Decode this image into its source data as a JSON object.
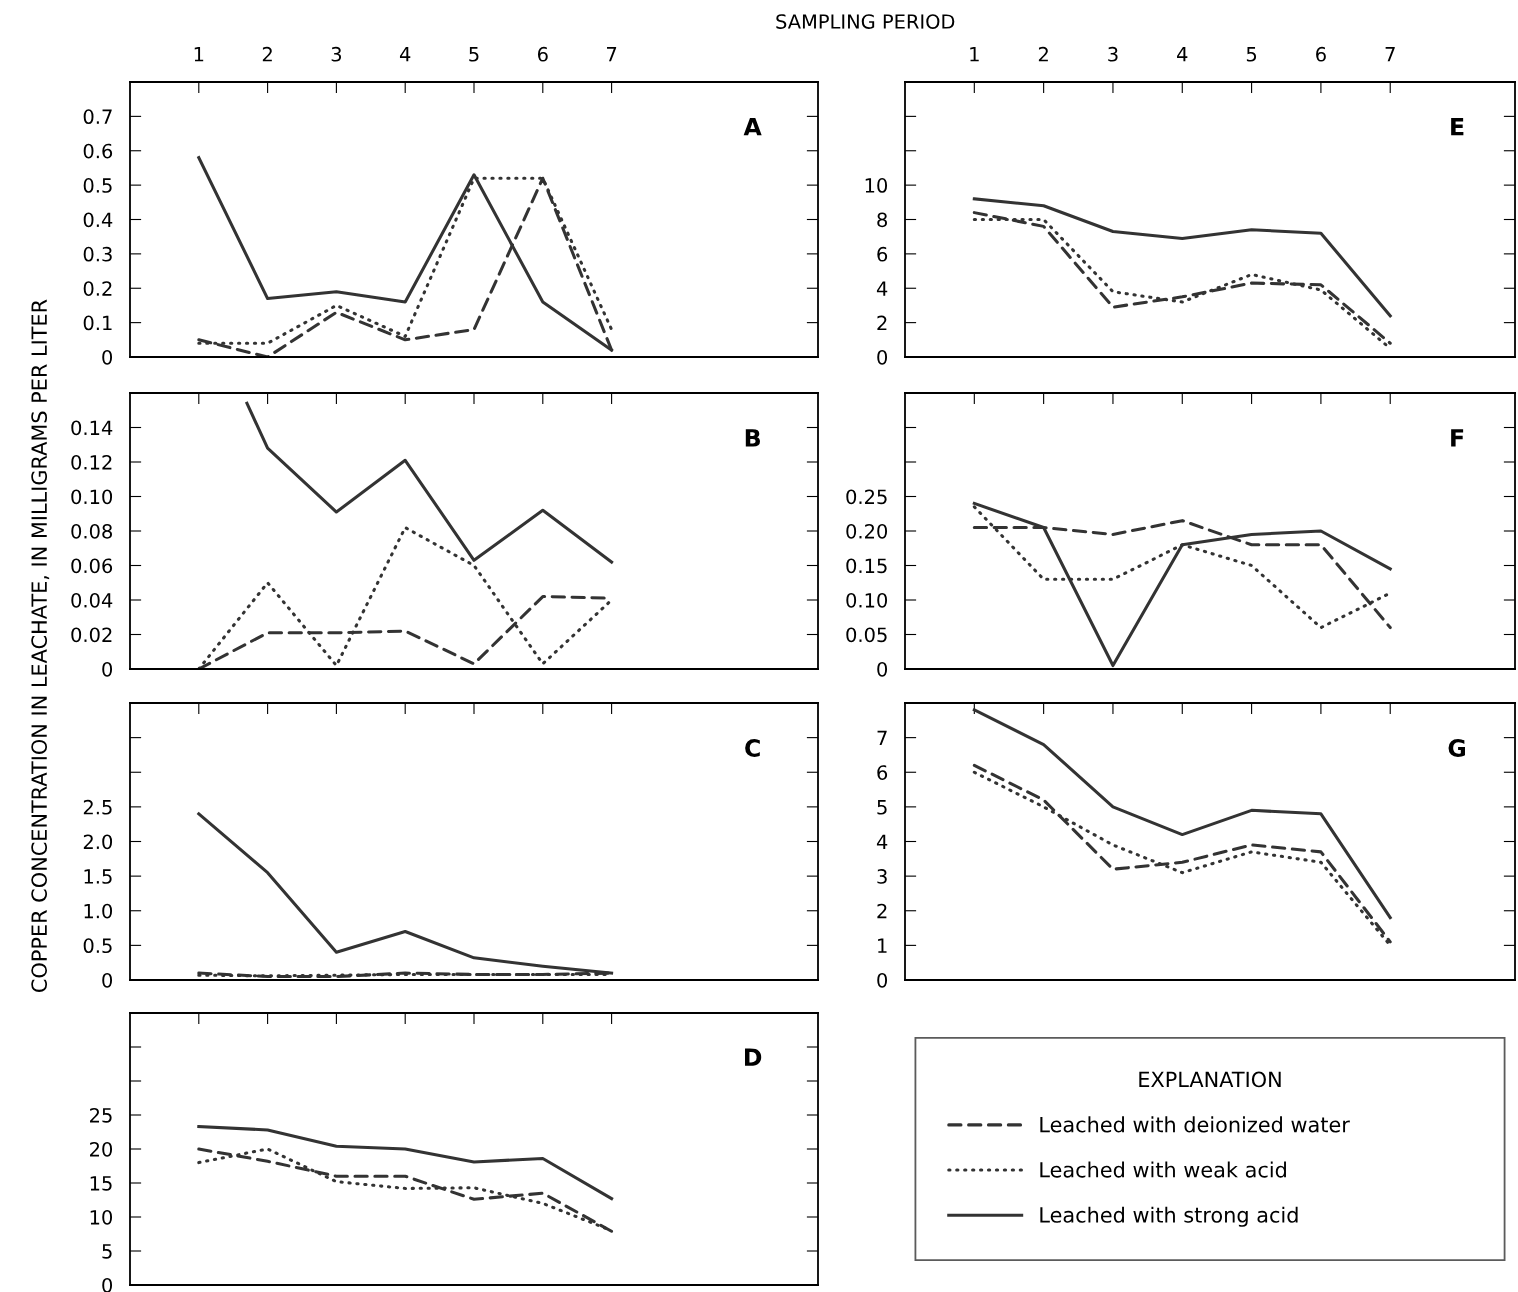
{
  "chart_data": [
    {
      "type": "line",
      "title": "A",
      "xlabel": "SAMPLING PERIOD",
      "ylabel": "COPPER CONCENTRATION IN LEACHATE, IN MILLIGRAMS PER LITER",
      "x": [
        1,
        2,
        3,
        4,
        5,
        6,
        7
      ],
      "xlim": [
        0,
        10
      ],
      "xticks": [
        1,
        2,
        3,
        4,
        5,
        6,
        7
      ],
      "ylim": [
        0,
        0.8
      ],
      "yticks": [
        0,
        0.1,
        0.2,
        0.3,
        0.4,
        0.5,
        0.6,
        0.7
      ],
      "series": [
        {
          "color": "#333333",
          "line_style": "dashed",
          "values": [
            0.05,
            0.0,
            0.13,
            0.05,
            0.08,
            0.52,
            0.02
          ]
        },
        {
          "color": "#333333",
          "line_style": "dotted",
          "values": [
            0.04,
            0.04,
            0.15,
            0.06,
            0.52,
            0.52,
            0.08
          ]
        },
        {
          "color": "#333333",
          "line_style": "solid",
          "values": [
            0.58,
            0.17,
            0.19,
            0.16,
            0.53,
            0.16,
            0.02
          ]
        }
      ]
    },
    {
      "type": "line",
      "title": "B",
      "x": [
        1,
        2,
        3,
        4,
        5,
        6,
        7
      ],
      "xlim": [
        0,
        10
      ],
      "xticks": [
        {
          "value": 1,
          "label": null
        },
        {
          "value": 2,
          "label": null
        },
        {
          "value": 3,
          "label": null
        },
        {
          "value": 4,
          "label": null
        },
        {
          "value": 5,
          "label": null
        },
        {
          "value": 6,
          "label": null
        },
        {
          "value": 7,
          "label": null
        }
      ],
      "ylim": [
        0,
        0.16
      ],
      "yticks": [
        {
          "value": 0,
          "label": "0"
        },
        {
          "value": 0.02,
          "label": "0.02"
        },
        {
          "value": 0.04,
          "label": "0.04"
        },
        {
          "value": 0.06,
          "label": "0.06"
        },
        {
          "value": 0.08,
          "label": "0.08"
        },
        {
          "value": 0.1,
          "label": "0.10"
        },
        {
          "value": 0.12,
          "label": "0.12"
        },
        {
          "value": 0.14,
          "label": "0.14"
        }
      ],
      "tick_labels": "y",
      "series": [
        {
          "color": "#333333",
          "line_style": "dashed",
          "values": [
            0.0,
            0.021,
            0.021,
            0.022,
            0.003,
            0.042,
            0.041
          ]
        },
        {
          "color": "#333333",
          "line_style": "dotted",
          "values": [
            0.0,
            0.05,
            0.002,
            0.082,
            0.06,
            0.003,
            0.04
          ]
        },
        {
          "color": "#333333",
          "line_style": "solid",
          "x": [
            1.7,
            2,
            3,
            4,
            5,
            6,
            7
          ],
          "values": [
            0.154,
            0.128,
            0.091,
            0.121,
            0.063,
            0.092,
            0.062
          ]
        }
      ]
    },
    {
      "type": "line",
      "title": "C",
      "x": [
        1,
        2,
        3,
        4,
        5,
        6,
        7
      ],
      "xlim": [
        0,
        10
      ],
      "xticks": [
        {
          "value": 1,
          "label": null
        },
        {
          "value": 2,
          "label": null
        },
        {
          "value": 3,
          "label": null
        },
        {
          "value": 4,
          "label": null
        },
        {
          "value": 5,
          "label": null
        },
        {
          "value": 6,
          "label": null
        },
        {
          "value": 7,
          "label": null
        }
      ],
      "ylim": [
        0,
        4
      ],
      "yticks": [
        0,
        0.5,
        {
          "value": 1,
          "label": "1.0"
        },
        1.5,
        {
          "value": 2,
          "label": "2.0"
        },
        2.5,
        {
          "value": 3,
          "label": null
        },
        {
          "value": 3.5,
          "label": null
        }
      ],
      "tick_labels": "y",
      "series": [
        {
          "color": "#333333",
          "line_style": "dashed",
          "values": [
            0.1,
            0.05,
            0.05,
            0.1,
            0.08,
            0.08,
            0.1
          ]
        },
        {
          "color": "#333333",
          "line_style": "dotted",
          "values": [
            0.07,
            0.06,
            0.07,
            0.08,
            0.08,
            0.08,
            0.08
          ]
        },
        {
          "color": "#333333",
          "line_style": "solid",
          "values": [
            2.4,
            1.55,
            0.4,
            0.7,
            0.32,
            0.2,
            0.1
          ]
        }
      ]
    },
    {
      "type": "line",
      "title": "D",
      "x": [
        1,
        2,
        3,
        4,
        5,
        6,
        7
      ],
      "xlim": [
        0,
        10
      ],
      "xticks": [
        {
          "value": 1,
          "label": null
        },
        {
          "value": 2,
          "label": null
        },
        {
          "value": 3,
          "label": null
        },
        {
          "value": 4,
          "label": null
        },
        {
          "value": 5,
          "label": null
        },
        {
          "value": 6,
          "label": null
        },
        {
          "value": 7,
          "label": null
        }
      ],
      "ylim": [
        0,
        40
      ],
      "yticks": [
        0,
        5,
        10,
        15,
        20,
        25,
        {
          "value": 30,
          "label": null
        },
        {
          "value": 35,
          "label": null
        }
      ],
      "tick_labels": "y",
      "series": [
        {
          "color": "#333333",
          "line_style": "dashed",
          "values": [
            20.0,
            18.2,
            16.0,
            16.0,
            12.6,
            13.5,
            7.9
          ]
        },
        {
          "color": "#333333",
          "line_style": "dotted",
          "values": [
            18.0,
            20.0,
            15.2,
            14.2,
            14.3,
            12.0,
            8.0
          ]
        },
        {
          "color": "#333333",
          "line_style": "solid",
          "values": [
            23.3,
            22.8,
            20.4,
            20.0,
            18.1,
            18.6,
            12.7
          ]
        }
      ]
    },
    {
      "type": "line",
      "title": "E",
      "x": [
        1,
        2,
        3,
        4,
        5,
        6,
        7
      ],
      "xlim": [
        0,
        8.8
      ],
      "xticks": [
        1,
        2,
        3,
        4,
        5,
        6,
        7
      ],
      "ylim": [
        0,
        16
      ],
      "yticks": [
        0,
        2,
        4,
        6,
        8,
        10,
        {
          "value": 12,
          "label": null
        },
        {
          "value": 14,
          "label": null
        }
      ],
      "series": [
        {
          "color": "#333333",
          "line_style": "dashed",
          "values": [
            8.4,
            7.6,
            2.9,
            3.5,
            4.3,
            4.2,
            0.8
          ]
        },
        {
          "color": "#333333",
          "line_style": "dotted",
          "values": [
            8.0,
            8.0,
            3.8,
            3.2,
            4.8,
            3.9,
            0.5
          ]
        },
        {
          "color": "#333333",
          "line_style": "solid",
          "values": [
            9.2,
            8.8,
            7.3,
            6.9,
            7.4,
            7.2,
            2.4
          ]
        }
      ]
    },
    {
      "type": "line",
      "title": "F",
      "x": [
        1,
        2,
        3,
        4,
        5,
        6,
        7
      ],
      "xlim": [
        0,
        8.8
      ],
      "xticks": [
        {
          "value": 1,
          "label": null
        },
        {
          "value": 2,
          "label": null
        },
        {
          "value": 3,
          "label": null
        },
        {
          "value": 4,
          "label": null
        },
        {
          "value": 5,
          "label": null
        },
        {
          "value": 6,
          "label": null
        },
        {
          "value": 7,
          "label": null
        }
      ],
      "ylim": [
        0,
        0.4
      ],
      "yticks": [
        0,
        0.05,
        {
          "value": 0.1,
          "label": "0.10"
        },
        0.15,
        {
          "value": 0.2,
          "label": "0.20"
        },
        0.25,
        {
          "value": 0.3,
          "label": null
        },
        {
          "value": 0.35,
          "label": null
        }
      ],
      "tick_labels": "y",
      "series": [
        {
          "color": "#333333",
          "line_style": "dashed",
          "values": [
            0.205,
            0.205,
            0.195,
            0.215,
            0.18,
            0.18,
            0.06
          ]
        },
        {
          "color": "#333333",
          "line_style": "dotted",
          "values": [
            0.235,
            0.13,
            0.13,
            0.18,
            0.15,
            0.06,
            0.11
          ]
        },
        {
          "color": "#333333",
          "line_style": "solid",
          "values": [
            0.24,
            0.205,
            0.005,
            0.18,
            0.195,
            0.2,
            0.145
          ]
        }
      ]
    },
    {
      "type": "line",
      "title": "G",
      "legend": "bottom",
      "legend_title": "EXPLANATION",
      "x": [
        1,
        2,
        3,
        4,
        5,
        6,
        7
      ],
      "xlim": [
        0,
        8.8
      ],
      "xticks": [
        {
          "value": 1,
          "label": null
        },
        {
          "value": 2,
          "label": null
        },
        {
          "value": 3,
          "label": null
        },
        {
          "value": 4,
          "label": null
        },
        {
          "value": 5,
          "label": null
        },
        {
          "value": 6,
          "label": null
        },
        {
          "value": 7,
          "label": null
        }
      ],
      "ylim": [
        0,
        8
      ],
      "yticks": [
        0,
        1,
        2,
        3,
        4,
        5,
        6,
        7
      ],
      "tick_labels": "y",
      "series": [
        {
          "name": "Leached with deionized water",
          "color": "#333333",
          "line_style": "dashed",
          "values": [
            6.2,
            5.2,
            3.2,
            3.4,
            3.9,
            3.7,
            1.1
          ]
        },
        {
          "name": "Leached with weak acid",
          "color": "#333333",
          "line_style": "dotted",
          "values": [
            6.0,
            5.0,
            3.9,
            3.1,
            3.7,
            3.4,
            1.0
          ]
        },
        {
          "name": "Leached with strong acid",
          "color": "#333333",
          "line_style": "solid",
          "values": [
            7.8,
            6.8,
            5.0,
            4.2,
            4.9,
            4.8,
            1.8
          ]
        }
      ]
    }
  ]
}
